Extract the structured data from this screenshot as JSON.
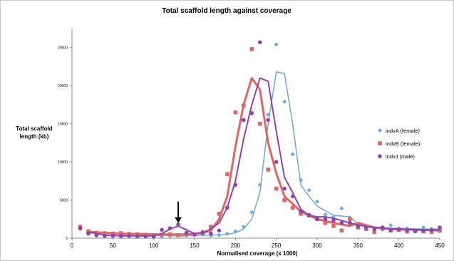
{
  "chart_data": {
    "type": "scatter",
    "title": "Total scaffold length against coverage",
    "xlabel": "Normalised coverage (x 1000)",
    "ylabel_lines": [
      "Total scaffold",
      "length (kb)"
    ],
    "xlim": [
      0,
      450
    ],
    "ylim": [
      0,
      27500
    ],
    "xticks": [
      0,
      50,
      100,
      150,
      200,
      250,
      300,
      350,
      400,
      450
    ],
    "yticks": [
      0,
      5000,
      10000,
      15000,
      20000,
      25000
    ],
    "xtick_labels": [
      "0",
      "50",
      "100",
      "150",
      "200",
      "250",
      "300",
      "350",
      "400",
      "450"
    ],
    "ytick_labels": [
      "0",
      "5000",
      "10000",
      "15000",
      "20000",
      "25000"
    ],
    "grid": false,
    "legend_position": "right",
    "arrow_annotation": {
      "x": 130,
      "y_from": 4800,
      "y_to": 2000
    },
    "series": [
      {
        "name": "indvA (female)",
        "color": "#6fa8dc",
        "marker": "diamond",
        "points": [
          [
            10,
            1200
          ],
          [
            20,
            600
          ],
          [
            30,
            300
          ],
          [
            40,
            200
          ],
          [
            50,
            200
          ],
          [
            60,
            150
          ],
          [
            70,
            200
          ],
          [
            80,
            150
          ],
          [
            90,
            150
          ],
          [
            100,
            200
          ],
          [
            110,
            200
          ],
          [
            120,
            300
          ],
          [
            130,
            400
          ],
          [
            140,
            350
          ],
          [
            150,
            400
          ],
          [
            160,
            450
          ],
          [
            170,
            350
          ],
          [
            180,
            400
          ],
          [
            190,
            600
          ],
          [
            200,
            900
          ],
          [
            210,
            1500
          ],
          [
            220,
            3400
          ],
          [
            230,
            7000
          ],
          [
            240,
            16200
          ],
          [
            250,
            25400
          ],
          [
            260,
            17900
          ],
          [
            270,
            11000
          ],
          [
            280,
            7600
          ],
          [
            290,
            6300
          ],
          [
            300,
            4800
          ],
          [
            310,
            3100
          ],
          [
            320,
            2800
          ],
          [
            330,
            3900
          ],
          [
            340,
            2700
          ],
          [
            350,
            1800
          ],
          [
            360,
            1400
          ],
          [
            370,
            1200
          ],
          [
            380,
            1100
          ],
          [
            390,
            1700
          ],
          [
            400,
            1200
          ],
          [
            410,
            1300
          ],
          [
            420,
            1000
          ],
          [
            430,
            1400
          ],
          [
            440,
            1200
          ],
          [
            450,
            900
          ]
        ],
        "line": [
          [
            20,
            900
          ],
          [
            60,
            600
          ],
          [
            100,
            400
          ],
          [
            130,
            300
          ],
          [
            150,
            350
          ],
          [
            170,
            400
          ],
          [
            190,
            500
          ],
          [
            200,
            700
          ],
          [
            210,
            1200
          ],
          [
            220,
            2500
          ],
          [
            230,
            6000
          ],
          [
            240,
            15000
          ],
          [
            250,
            21800
          ],
          [
            260,
            21600
          ],
          [
            270,
            15000
          ],
          [
            280,
            7000
          ],
          [
            290,
            5500
          ],
          [
            300,
            4200
          ],
          [
            320,
            3000
          ],
          [
            330,
            2900
          ],
          [
            340,
            2800
          ],
          [
            350,
            1800
          ],
          [
            370,
            1300
          ],
          [
            400,
            1300
          ],
          [
            430,
            1200
          ],
          [
            450,
            1200
          ]
        ]
      },
      {
        "name": "indvB (female)",
        "color": "#e06666",
        "marker": "square",
        "points": [
          [
            10,
            1500
          ],
          [
            20,
            900
          ],
          [
            30,
            700
          ],
          [
            40,
            650
          ],
          [
            50,
            600
          ],
          [
            60,
            650
          ],
          [
            70,
            550
          ],
          [
            80,
            500
          ],
          [
            90,
            450
          ],
          [
            100,
            400
          ],
          [
            110,
            450
          ],
          [
            120,
            500
          ],
          [
            130,
            400
          ],
          [
            140,
            500
          ],
          [
            150,
            500
          ],
          [
            160,
            800
          ],
          [
            170,
            1500
          ],
          [
            180,
            3200
          ],
          [
            190,
            8400
          ],
          [
            200,
            16500
          ],
          [
            210,
            17400
          ],
          [
            220,
            24800
          ],
          [
            230,
            15000
          ],
          [
            240,
            9000
          ],
          [
            250,
            6500
          ],
          [
            260,
            5000
          ],
          [
            270,
            4000
          ],
          [
            280,
            3200
          ],
          [
            290,
            3000
          ],
          [
            300,
            2500
          ],
          [
            310,
            2000
          ],
          [
            320,
            1600
          ],
          [
            330,
            1000
          ],
          [
            340,
            2500
          ],
          [
            350,
            1400
          ],
          [
            360,
            1200
          ],
          [
            370,
            800
          ],
          [
            380,
            1300
          ],
          [
            390,
            1000
          ],
          [
            400,
            1100
          ],
          [
            410,
            900
          ],
          [
            420,
            1000
          ],
          [
            430,
            900
          ],
          [
            440,
            800
          ],
          [
            450,
            1000
          ]
        ],
        "line": [
          [
            20,
            800
          ],
          [
            40,
            700
          ],
          [
            60,
            600
          ],
          [
            80,
            550
          ],
          [
            100,
            500
          ],
          [
            120,
            500
          ],
          [
            140,
            500
          ],
          [
            160,
            700
          ],
          [
            170,
            1000
          ],
          [
            180,
            2500
          ],
          [
            190,
            5500
          ],
          [
            200,
            12000
          ],
          [
            210,
            17500
          ],
          [
            220,
            21000
          ],
          [
            230,
            19500
          ],
          [
            240,
            12500
          ],
          [
            250,
            8500
          ],
          [
            260,
            5500
          ],
          [
            270,
            4500
          ],
          [
            280,
            3500
          ],
          [
            290,
            3000
          ],
          [
            300,
            2500
          ],
          [
            320,
            2000
          ],
          [
            340,
            1600
          ],
          [
            350,
            2000
          ],
          [
            360,
            1700
          ],
          [
            370,
            1400
          ],
          [
            390,
            1200
          ],
          [
            420,
            1100
          ],
          [
            450,
            1000
          ]
        ]
      },
      {
        "name": "indvJ (male)",
        "color": "#8e44ad",
        "marker": "circle",
        "points": [
          [
            10,
            1300
          ],
          [
            20,
            600
          ],
          [
            30,
            400
          ],
          [
            40,
            300
          ],
          [
            50,
            350
          ],
          [
            60,
            300
          ],
          [
            70,
            300
          ],
          [
            80,
            250
          ],
          [
            90,
            250
          ],
          [
            100,
            200
          ],
          [
            110,
            1100
          ],
          [
            120,
            1300
          ],
          [
            130,
            1800
          ],
          [
            140,
            700
          ],
          [
            150,
            500
          ],
          [
            160,
            700
          ],
          [
            170,
            600
          ],
          [
            180,
            1000
          ],
          [
            190,
            4000
          ],
          [
            200,
            7000
          ],
          [
            210,
            15500
          ],
          [
            220,
            16400
          ],
          [
            230,
            25700
          ],
          [
            240,
            15500
          ],
          [
            250,
            10000
          ],
          [
            260,
            6500
          ],
          [
            270,
            5500
          ],
          [
            280,
            3500
          ],
          [
            290,
            3000
          ],
          [
            300,
            2500
          ],
          [
            310,
            2500
          ],
          [
            320,
            2300
          ],
          [
            330,
            2000
          ],
          [
            340,
            2000
          ],
          [
            350,
            1600
          ],
          [
            360,
            1400
          ],
          [
            370,
            1200
          ],
          [
            380,
            1400
          ],
          [
            390,
            1100
          ],
          [
            400,
            1200
          ],
          [
            410,
            1000
          ],
          [
            420,
            900
          ],
          [
            430,
            1000
          ],
          [
            440,
            1100
          ],
          [
            450,
            1400
          ]
        ],
        "line": [
          [
            20,
            800
          ],
          [
            40,
            400
          ],
          [
            60,
            300
          ],
          [
            80,
            300
          ],
          [
            100,
            300
          ],
          [
            110,
            600
          ],
          [
            120,
            1200
          ],
          [
            130,
            1600
          ],
          [
            140,
            1100
          ],
          [
            150,
            600
          ],
          [
            160,
            700
          ],
          [
            170,
            1200
          ],
          [
            180,
            2000
          ],
          [
            190,
            4000
          ],
          [
            200,
            7500
          ],
          [
            210,
            13000
          ],
          [
            220,
            17500
          ],
          [
            230,
            21000
          ],
          [
            240,
            20600
          ],
          [
            250,
            14000
          ],
          [
            260,
            8000
          ],
          [
            270,
            6000
          ],
          [
            280,
            3800
          ],
          [
            290,
            3000
          ],
          [
            300,
            2800
          ],
          [
            310,
            2800
          ],
          [
            320,
            2600
          ],
          [
            330,
            2300
          ],
          [
            340,
            2000
          ],
          [
            350,
            1700
          ],
          [
            370,
            1400
          ],
          [
            400,
            1200
          ],
          [
            430,
            1100
          ],
          [
            450,
            1100
          ]
        ]
      }
    ]
  }
}
